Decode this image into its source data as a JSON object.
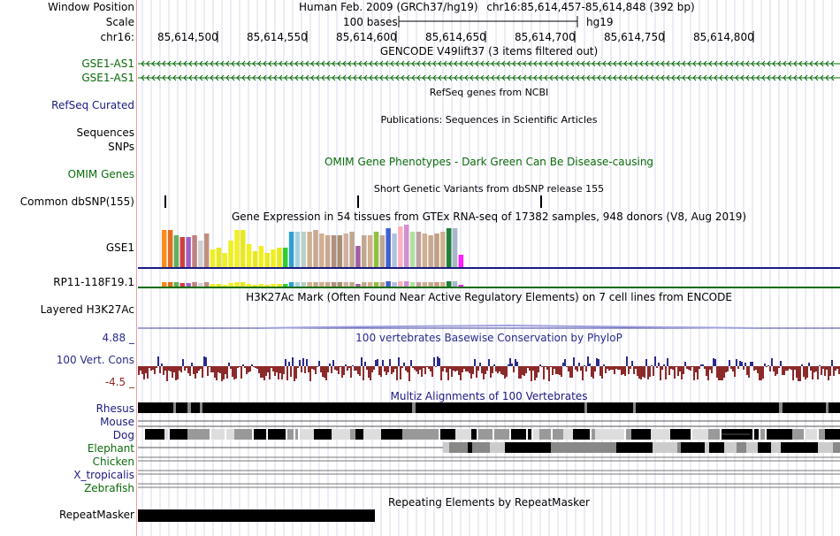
{
  "header": {
    "window_position_label": "Window Position",
    "scale_label": "Scale",
    "chrom_label": "chr16:",
    "assembly": "Human Feb. 2009 (GRCh37/hg19)",
    "position": "chr16:85,614,457-85,614,848 (392 bp)",
    "scale_text": "100 bases",
    "db": "hg19",
    "ticks": [
      "85,614,500",
      "85,614,550",
      "85,614,600",
      "85,614,650",
      "85,614,700",
      "85,614,750",
      "85,614,800"
    ]
  },
  "tracks": {
    "gencode_title": "GENCODE V49lift37 (3 items filtered out)",
    "gencode_items": [
      "GSE1-AS1",
      "GSE1-AS1"
    ],
    "refseq_title": "RefSeq genes from NCBI",
    "refseq_label": "RefSeq Curated",
    "pubs_title": "Publications: Sequences in Scientific Articles",
    "pubs_label_1": "Sequences",
    "pubs_label_2": "SNPs",
    "omim_title": "OMIM Gene Phenotypes - Dark Green Can Be Disease-causing",
    "omim_label": "OMIM Genes",
    "snp_title": "Short Genetic Variants from dbSNP release 155",
    "snp_label": "Common dbSNP(155)",
    "gtex_title": "Gene Expression in 54 tissues from GTEx RNA-seq of 17382 samples, 948 donors (V8, Aug 2019)",
    "gtex_gene_1": "GSE1",
    "gtex_gene_2": "RP11-118F19.1",
    "h3k27_title": "H3K27Ac Mark (Often Found Near Active Regulatory Elements) on 7 cell lines from ENCODE",
    "h3k27_label": "Layered H3K27Ac",
    "cons_title": "100 vertebrates Basewise Conservation by PhyloP",
    "cons_label": "100 Vert. Cons",
    "cons_max": "4.88 _",
    "cons_min": "-4.5 _",
    "multiz_title": "Multiz Alignments of 100 Vertebrates",
    "species": [
      "Rhesus",
      "Mouse",
      "Dog",
      "Elephant",
      "Chicken",
      "X_tropicalis",
      "Zebrafish"
    ],
    "rmsk_title": "Repeating Elements by RepeatMasker",
    "rmsk_label": "RepeatMasker"
  },
  "colors": {
    "gencode": "#0a6b0a",
    "refseq": "#1a1a80",
    "cons_pos": "#2a2a8c",
    "cons_neg": "#8c2a2a",
    "gtex_bars": [
      "#ff8c1a",
      "#e07020",
      "#60b060",
      "#d04040",
      "#a060c0",
      "#c08080",
      "#d0d0d0",
      "#c09080",
      "#f0f020",
      "#e8e820",
      "#f0f020",
      "#eeee22",
      "#f2f020",
      "#e8e820",
      "#f0f020",
      "#e8e820",
      "#f0f020",
      "#e8e820",
      "#f0f020",
      "#e8e820",
      "#33cc33",
      "#30a0d0",
      "#a8d0e0",
      "#b8d0c8",
      "#d0b090",
      "#c8a890",
      "#d0b090",
      "#c8a890",
      "#b09080",
      "#a89070",
      "#d0b0a0",
      "#c0a890",
      "#a060a0",
      "#c0a890",
      "#d0b090",
      "#90c040",
      "#c0a890",
      "#4060d0",
      "#b0c0e0",
      "#ffb0c0",
      "#d090d0",
      "#b0e0a0",
      "#c0a0a0",
      "#d0b090",
      "#c8a890",
      "#c0a080",
      "#d0b090",
      "#20803a",
      "#a8b8c8",
      "#ff20ff"
    ],
    "gtex_heights": [
      42,
      42,
      36,
      34,
      34,
      36,
      30,
      38,
      20,
      22,
      16,
      30,
      42,
      42,
      26,
      18,
      24,
      16,
      20,
      22,
      22,
      40,
      40,
      40,
      40,
      42,
      38,
      36,
      36,
      36,
      38,
      40,
      24,
      36,
      36,
      40,
      36,
      44,
      38,
      46,
      48,
      40,
      40,
      38,
      36,
      38,
      40,
      44,
      44,
      14
    ]
  }
}
